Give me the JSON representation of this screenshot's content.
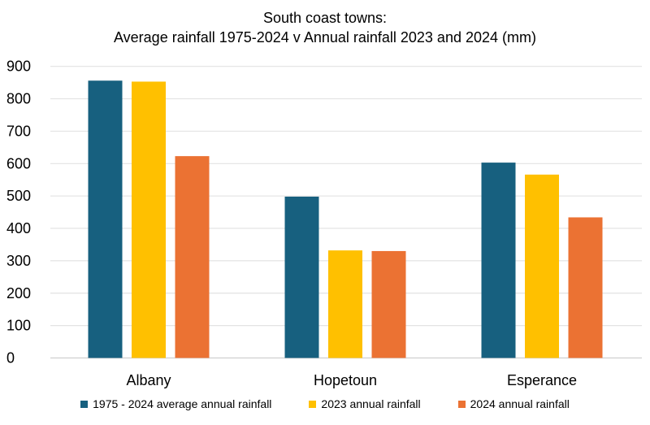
{
  "chart_data": {
    "type": "bar",
    "title": "South coast towns:",
    "subtitle": "Average rainfall 1975-2024 v Annual rainfall 2023 and 2024 (mm)",
    "xlabel": "",
    "ylabel": "",
    "ylim": [
      0,
      900
    ],
    "yticks": [
      0,
      100,
      200,
      300,
      400,
      500,
      600,
      700,
      800,
      900
    ],
    "grid": true,
    "legend_position": "bottom",
    "categories": [
      "Albany",
      "Hopetoun",
      "Esperance"
    ],
    "series": [
      {
        "name": "1975 - 2024 average annual rainfall",
        "color": "#17607F",
        "values": [
          856,
          498,
          603
        ]
      },
      {
        "name": "2023 annual rainfall",
        "color": "#FFC000",
        "values": [
          853,
          332,
          566
        ]
      },
      {
        "name": "2024 annual rainfall",
        "color": "#EB7233",
        "values": [
          623,
          330,
          434
        ]
      }
    ]
  }
}
